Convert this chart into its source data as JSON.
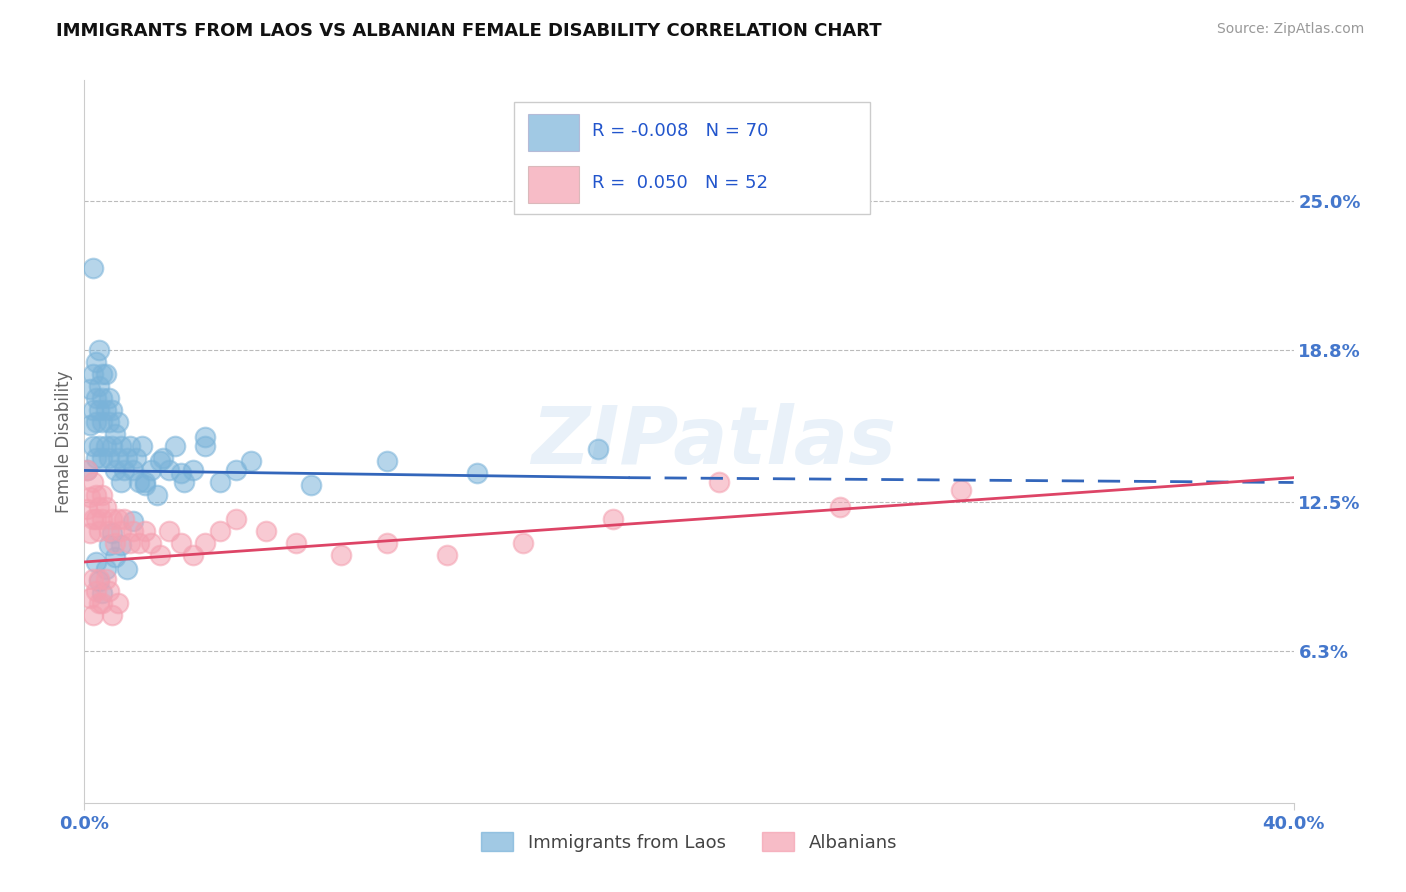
{
  "title": "IMMIGRANTS FROM LAOS VS ALBANIAN FEMALE DISABILITY CORRELATION CHART",
  "source": "Source: ZipAtlas.com",
  "ylabel": "Female Disability",
  "xlim": [
    0.0,
    0.4
  ],
  "ylim": [
    0.0,
    0.3
  ],
  "xticks": [
    0.0,
    0.4
  ],
  "xticklabels": [
    "0.0%",
    "40.0%"
  ],
  "ytick_positions": [
    0.063,
    0.125,
    0.188,
    0.25
  ],
  "ytick_labels": [
    "6.3%",
    "12.5%",
    "18.8%",
    "25.0%"
  ],
  "series1_color": "#7ab3d9",
  "series2_color": "#f4a0b0",
  "series1_label": "Immigrants from Laos",
  "series2_label": "Albanians",
  "R1": "-0.008",
  "N1": "70",
  "R2": "0.050",
  "N2": "52",
  "legend_text_color": "#2255cc",
  "axis_color": "#4477cc",
  "title_color": "#111111",
  "watermark": "ZIPatlas",
  "trendline1_color": "#3366bb",
  "trendline2_color": "#dd4466",
  "scatter1_x": [
    0.001,
    0.002,
    0.002,
    0.003,
    0.003,
    0.003,
    0.004,
    0.004,
    0.004,
    0.004,
    0.005,
    0.005,
    0.005,
    0.005,
    0.006,
    0.006,
    0.006,
    0.006,
    0.007,
    0.007,
    0.007,
    0.008,
    0.008,
    0.008,
    0.009,
    0.009,
    0.01,
    0.01,
    0.011,
    0.011,
    0.012,
    0.012,
    0.013,
    0.014,
    0.015,
    0.016,
    0.017,
    0.018,
    0.019,
    0.02,
    0.022,
    0.024,
    0.026,
    0.028,
    0.03,
    0.033,
    0.036,
    0.04,
    0.045,
    0.05,
    0.003,
    0.004,
    0.005,
    0.006,
    0.007,
    0.008,
    0.009,
    0.01,
    0.012,
    0.014,
    0.016,
    0.02,
    0.025,
    0.032,
    0.04,
    0.055,
    0.075,
    0.1,
    0.13,
    0.17
  ],
  "scatter1_y": [
    0.138,
    0.172,
    0.157,
    0.148,
    0.163,
    0.178,
    0.143,
    0.158,
    0.168,
    0.183,
    0.148,
    0.163,
    0.173,
    0.188,
    0.143,
    0.158,
    0.168,
    0.178,
    0.148,
    0.163,
    0.178,
    0.143,
    0.158,
    0.168,
    0.148,
    0.163,
    0.138,
    0.153,
    0.143,
    0.158,
    0.133,
    0.148,
    0.138,
    0.143,
    0.148,
    0.138,
    0.143,
    0.133,
    0.148,
    0.133,
    0.138,
    0.128,
    0.143,
    0.138,
    0.148,
    0.133,
    0.138,
    0.148,
    0.133,
    0.138,
    0.222,
    0.1,
    0.092,
    0.087,
    0.097,
    0.107,
    0.112,
    0.102,
    0.107,
    0.097,
    0.117,
    0.132,
    0.142,
    0.137,
    0.152,
    0.142,
    0.132,
    0.142,
    0.137,
    0.147
  ],
  "scatter2_x": [
    0.001,
    0.001,
    0.002,
    0.002,
    0.003,
    0.003,
    0.004,
    0.004,
    0.005,
    0.005,
    0.006,
    0.006,
    0.007,
    0.008,
    0.009,
    0.01,
    0.011,
    0.012,
    0.013,
    0.015,
    0.016,
    0.018,
    0.02,
    0.022,
    0.025,
    0.028,
    0.032,
    0.036,
    0.04,
    0.045,
    0.05,
    0.06,
    0.07,
    0.085,
    0.1,
    0.12,
    0.145,
    0.175,
    0.21,
    0.25,
    0.002,
    0.003,
    0.003,
    0.004,
    0.005,
    0.005,
    0.006,
    0.007,
    0.008,
    0.009,
    0.011,
    0.29
  ],
  "scatter2_y": [
    0.122,
    0.138,
    0.112,
    0.127,
    0.118,
    0.133,
    0.118,
    0.128,
    0.113,
    0.123,
    0.118,
    0.128,
    0.123,
    0.113,
    0.118,
    0.108,
    0.118,
    0.113,
    0.118,
    0.108,
    0.113,
    0.108,
    0.113,
    0.108,
    0.103,
    0.113,
    0.108,
    0.103,
    0.108,
    0.113,
    0.118,
    0.113,
    0.108,
    0.103,
    0.108,
    0.103,
    0.108,
    0.118,
    0.133,
    0.123,
    0.085,
    0.078,
    0.093,
    0.088,
    0.083,
    0.093,
    0.083,
    0.093,
    0.088,
    0.078,
    0.083,
    0.13
  ],
  "trendline1_x": [
    0.0,
    0.18,
    0.18,
    0.4
  ],
  "trendline1_y": [
    0.138,
    0.135,
    0.135,
    0.133
  ],
  "trendline1_styles": [
    "solid",
    "solid",
    "dashed",
    "dashed"
  ],
  "trendline2_x": [
    0.0,
    0.4
  ],
  "trendline2_y": [
    0.1,
    0.135
  ]
}
